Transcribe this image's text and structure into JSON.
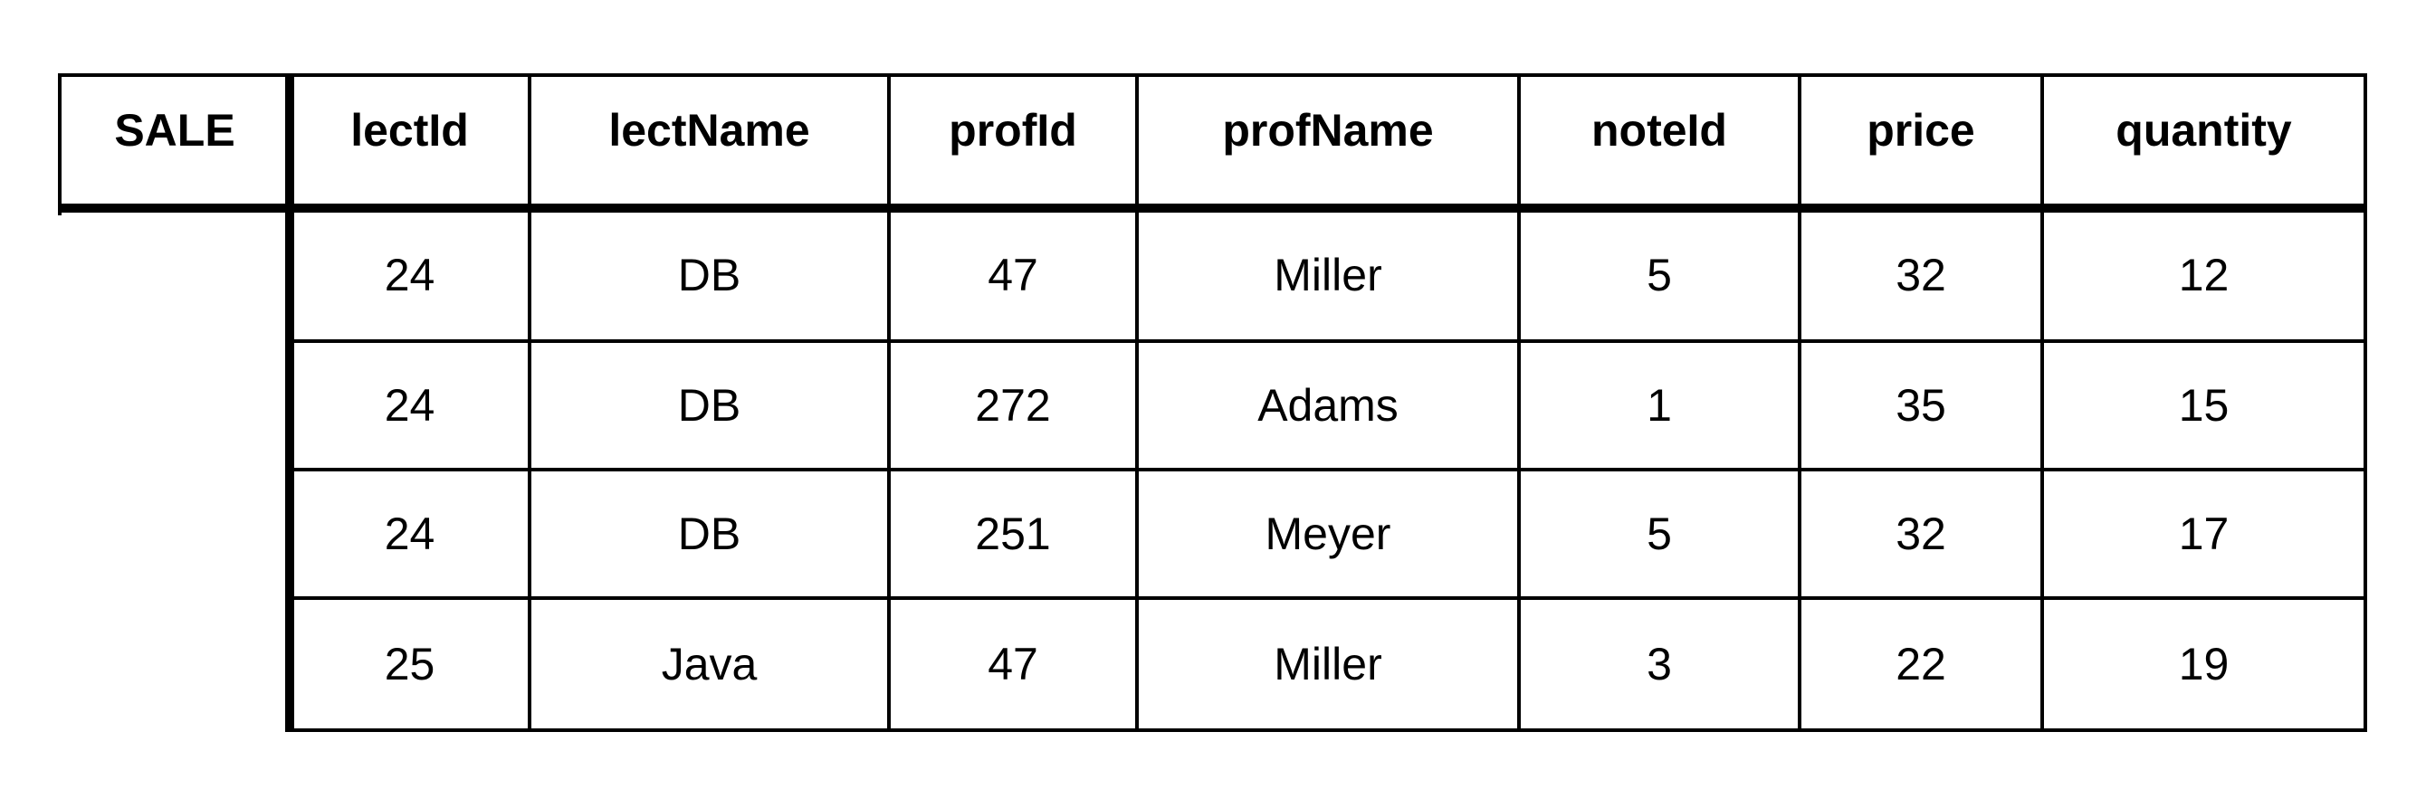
{
  "table": {
    "name": "SALE",
    "columns": [
      "lectId",
      "lectName",
      "profId",
      "profName",
      "noteId",
      "price",
      "quantity"
    ],
    "rows": [
      [
        "24",
        "DB",
        "47",
        "Miller",
        "5",
        "32",
        "12"
      ],
      [
        "24",
        "DB",
        "272",
        "Adams",
        "1",
        "35",
        "15"
      ],
      [
        "24",
        "DB",
        "251",
        "Meyer",
        "5",
        "32",
        "17"
      ],
      [
        "25",
        "Java",
        "47",
        "Miller",
        "3",
        "22",
        "19"
      ]
    ]
  }
}
